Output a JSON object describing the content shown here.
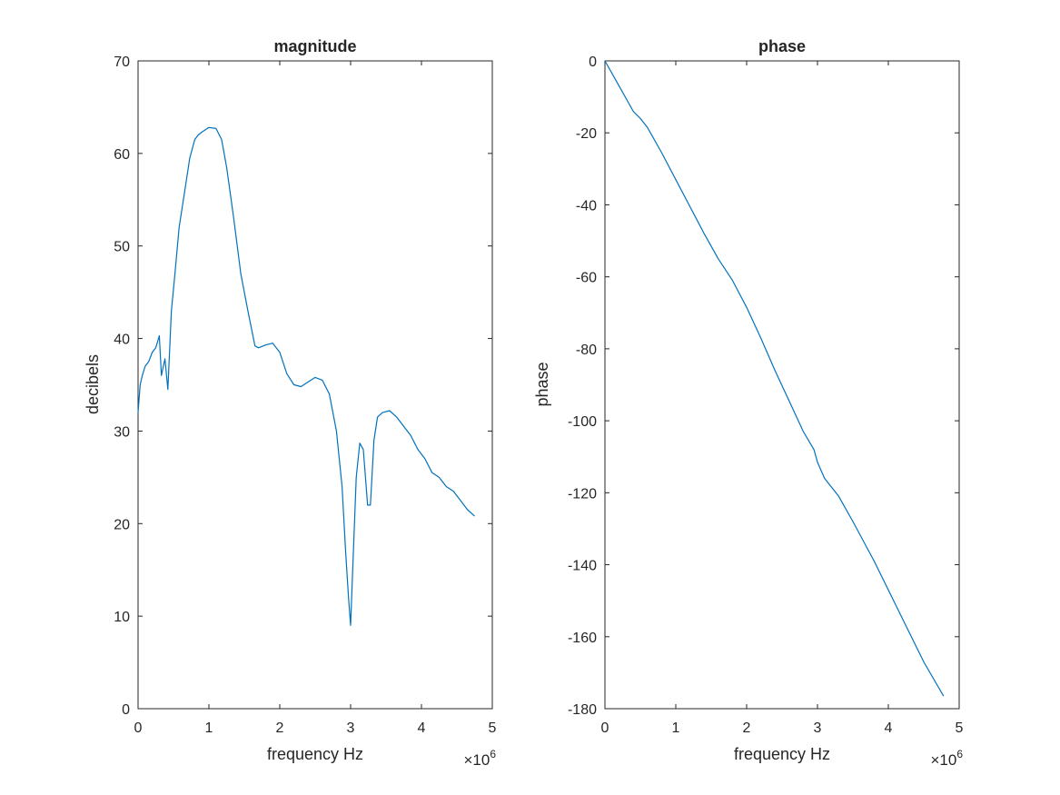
{
  "chart_data": [
    {
      "type": "line",
      "title": "magnitude",
      "xlabel": "frequency Hz",
      "ylabel": "decibels",
      "x_exponent_label": "×10",
      "x_exponent_power": "6",
      "xlim": [
        0,
        5000000
      ],
      "ylim": [
        0,
        70
      ],
      "xticks": [
        0,
        1000000,
        2000000,
        3000000,
        4000000,
        5000000
      ],
      "xtick_labels": [
        "0",
        "1",
        "2",
        "3",
        "4",
        "5"
      ],
      "yticks": [
        0,
        10,
        20,
        30,
        40,
        50,
        60,
        70
      ],
      "ytick_labels": [
        "0",
        "10",
        "20",
        "30",
        "40",
        "50",
        "60",
        "70"
      ],
      "grid": false,
      "line_color": "#0072BD",
      "series": [
        {
          "x": [
            0,
            30000,
            60000,
            100000,
            150000,
            200000,
            250000,
            300000,
            330000,
            380000,
            420000,
            470000,
            520000,
            580000,
            650000,
            730000,
            800000,
            850000,
            900000,
            1000000,
            1100000,
            1180000,
            1250000,
            1350000,
            1450000,
            1550000,
            1650000,
            1700000,
            1800000,
            1900000,
            2000000,
            2100000,
            2200000,
            2300000,
            2400000,
            2500000,
            2600000,
            2700000,
            2800000,
            2880000,
            2930000,
            2970000,
            3000000,
            3030000,
            3080000,
            3130000,
            3180000,
            3240000,
            3280000,
            3330000,
            3380000,
            3450000,
            3550000,
            3650000,
            3750000,
            3850000,
            3950000,
            4050000,
            4150000,
            4250000,
            4350000,
            4450000,
            4550000,
            4650000,
            4750000
          ],
          "y": [
            32,
            35,
            36,
            37,
            37.5,
            38.5,
            39,
            40.3,
            36,
            37.8,
            34.5,
            43,
            47,
            52,
            55.5,
            59.5,
            61.5,
            62,
            62.3,
            62.8,
            62.7,
            61.5,
            58.5,
            53,
            47,
            43,
            39.2,
            39,
            39.3,
            39.5,
            38.5,
            36.2,
            35,
            34.8,
            35.3,
            35.8,
            35.5,
            34,
            30,
            24,
            17,
            12,
            9,
            15,
            25,
            28.7,
            28,
            22,
            22,
            29,
            31.5,
            32,
            32.2,
            31.5,
            30.5,
            29.5,
            28,
            27,
            25.5,
            25,
            24,
            23.5,
            22.5,
            21.5,
            20.8
          ]
        }
      ]
    },
    {
      "type": "line",
      "title": "phase",
      "xlabel": "frequency Hz",
      "ylabel": "phase",
      "x_exponent_label": "×10",
      "x_exponent_power": "6",
      "xlim": [
        0,
        5000000
      ],
      "ylim": [
        -180,
        0
      ],
      "xticks": [
        0,
        1000000,
        2000000,
        3000000,
        4000000,
        5000000
      ],
      "xtick_labels": [
        "0",
        "1",
        "2",
        "3",
        "4",
        "5"
      ],
      "yticks": [
        -180,
        -160,
        -140,
        -120,
        -100,
        -80,
        -60,
        -40,
        -20,
        0
      ],
      "ytick_labels": [
        "-180",
        "-160",
        "-140",
        "-120",
        "-100",
        "-80",
        "-60",
        "-40",
        "-20",
        "0"
      ],
      "grid": false,
      "line_color": "#0072BD",
      "series": [
        {
          "x": [
            0,
            200000,
            400000,
            500000,
            600000,
            800000,
            1000000,
            1200000,
            1400000,
            1600000,
            1800000,
            2000000,
            2200000,
            2400000,
            2600000,
            2800000,
            2950000,
            3000000,
            3100000,
            3300000,
            3500000,
            3800000,
            4200000,
            4500000,
            4780000
          ],
          "y": [
            0,
            -7,
            -14,
            -16,
            -18.5,
            -25.5,
            -33,
            -40.5,
            -48,
            -55,
            -61,
            -68.5,
            -77,
            -86,
            -94.5,
            -103,
            -108,
            -111.5,
            -116,
            -121,
            -128,
            -139,
            -155,
            -167,
            -176.5
          ]
        }
      ]
    }
  ]
}
